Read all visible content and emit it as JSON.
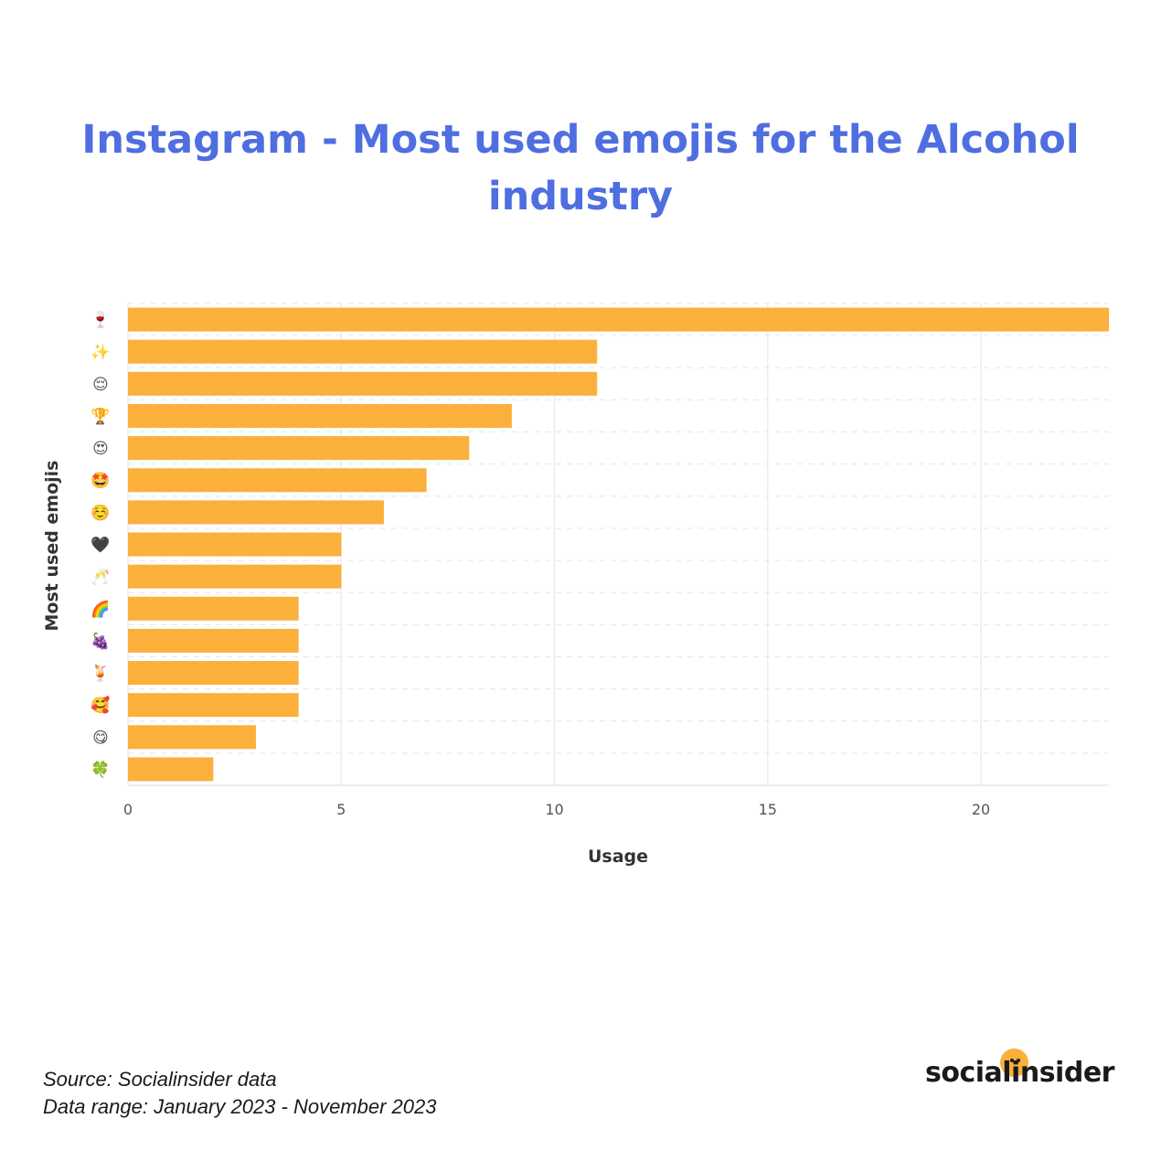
{
  "title": "Instagram - Most used emojis for the Alcohol industry",
  "footer": {
    "source": "Source: Socialinsider data",
    "range": "Data range: January 2023 - November 2023"
  },
  "logo": {
    "text": "socialinsider"
  },
  "chart_data": {
    "type": "bar",
    "orientation": "horizontal",
    "xlabel": "Usage",
    "ylabel": "Most used emojis",
    "xlim": [
      0,
      23
    ],
    "xticks": [
      0,
      5,
      10,
      15,
      20
    ],
    "grid": true,
    "bar_color": "#fbb03b",
    "categories": [
      "🍷",
      "✨",
      "😌",
      "🏆",
      "😍",
      "🤩",
      "☺️",
      "🖤",
      "🥂",
      "🌈",
      "🍇",
      "🍹",
      "🥰",
      "😋",
      "🍀"
    ],
    "values": [
      23,
      11,
      11,
      9,
      8,
      7,
      6,
      5,
      5,
      4,
      4,
      4,
      4,
      3,
      2
    ]
  }
}
